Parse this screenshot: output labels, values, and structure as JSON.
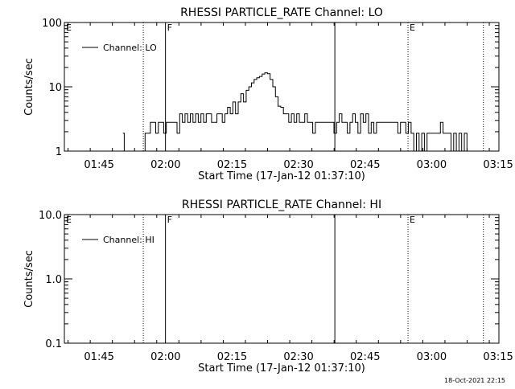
{
  "footer_text": "18-Oct-2021 22:15",
  "chart_data": [
    {
      "type": "line",
      "title": "RHESSI PARTICLE_RATE Channel: LO",
      "xlabel": "Start Time (17-Jan-12 01:37:10)",
      "ylabel": "Counts/sec",
      "yscale": "log",
      "ylim": [
        1,
        100
      ],
      "ytick_values": [
        1,
        10,
        100
      ],
      "ytick_labels": [
        "1",
        "10",
        "100"
      ],
      "xlim_minutes": [
        0,
        98
      ],
      "xtick_labels": [
        "01:45",
        "02:00",
        "02:15",
        "02:30",
        "02:45",
        "03:00",
        "03:15"
      ],
      "xtick_minutes": [
        7.83,
        22.83,
        37.83,
        52.83,
        67.83,
        82.83,
        97.83
      ],
      "legend": {
        "label": "Channel: LO",
        "placement": "top-left"
      },
      "markers": [
        {
          "label": "E",
          "minute": 0,
          "style": "none"
        },
        {
          "label": "",
          "minute": 17.8,
          "style": "dotted"
        },
        {
          "label": "F",
          "minute": 22.8,
          "style": "solid"
        },
        {
          "label": "",
          "minute": 61.0,
          "style": "solid"
        },
        {
          "label": "E",
          "minute": 77.5,
          "style": "dotted"
        },
        {
          "label": "",
          "minute": 94.5,
          "style": "dotted"
        }
      ],
      "series": [
        {
          "name": "Channel: LO",
          "points": [
            [
              13.2,
              1.9
            ],
            [
              13.5,
              1.0
            ],
            null,
            [
              17.8,
              1.0
            ],
            [
              18.2,
              1.9
            ],
            [
              18.8,
              1.9
            ],
            [
              19.4,
              2.8
            ],
            [
              20.0,
              2.8
            ],
            [
              20.6,
              1.9
            ],
            [
              21.2,
              2.8
            ],
            [
              21.8,
              2.8
            ],
            [
              22.4,
              1.9
            ],
            [
              23.0,
              2.8
            ],
            [
              23.6,
              2.8
            ],
            [
              24.2,
              2.8
            ],
            [
              24.8,
              2.8
            ],
            [
              25.4,
              1.9
            ],
            [
              26.0,
              3.8
            ],
            [
              26.6,
              2.8
            ],
            [
              27.2,
              3.8
            ],
            [
              27.8,
              2.8
            ],
            [
              28.4,
              3.8
            ],
            [
              29.0,
              2.8
            ],
            [
              29.6,
              3.8
            ],
            [
              30.2,
              2.8
            ],
            [
              30.8,
              3.8
            ],
            [
              31.4,
              2.8
            ],
            [
              32.0,
              3.8
            ],
            [
              32.6,
              3.8
            ],
            [
              33.2,
              2.8
            ],
            [
              33.8,
              2.8
            ],
            [
              34.4,
              3.8
            ],
            [
              35.0,
              3.8
            ],
            [
              35.6,
              2.8
            ],
            [
              36.2,
              3.8
            ],
            [
              36.8,
              4.8
            ],
            [
              37.4,
              3.8
            ],
            [
              38.0,
              5.8
            ],
            [
              38.6,
              3.8
            ],
            [
              39.2,
              5.8
            ],
            [
              39.8,
              7.8
            ],
            [
              40.4,
              5.8
            ],
            [
              41.0,
              8.8
            ],
            [
              41.6,
              10.0
            ],
            [
              42.2,
              11.5
            ],
            [
              42.8,
              13.0
            ],
            [
              43.4,
              13.8
            ],
            [
              44.0,
              14.5
            ],
            [
              44.6,
              15.8
            ],
            [
              45.2,
              16.5
            ],
            [
              45.8,
              16.0
            ],
            [
              46.4,
              13.0
            ],
            [
              47.0,
              10.0
            ],
            [
              47.6,
              7.0
            ],
            [
              48.2,
              5.0
            ],
            [
              48.8,
              4.8
            ],
            [
              49.4,
              3.8
            ],
            [
              50.0,
              3.8
            ],
            [
              50.6,
              2.8
            ],
            [
              51.2,
              3.8
            ],
            [
              51.8,
              2.8
            ],
            [
              52.4,
              3.8
            ],
            [
              53.0,
              2.8
            ],
            [
              53.6,
              2.8
            ],
            [
              54.2,
              3.8
            ],
            [
              54.8,
              2.8
            ],
            [
              55.4,
              2.8
            ],
            [
              56.0,
              1.9
            ],
            [
              56.6,
              2.8
            ],
            [
              57.2,
              2.8
            ],
            [
              57.8,
              2.8
            ],
            [
              58.4,
              2.8
            ],
            [
              59.0,
              2.8
            ],
            [
              59.6,
              2.8
            ],
            [
              60.2,
              2.8
            ],
            [
              60.8,
              1.9
            ],
            [
              61.4,
              2.8
            ],
            [
              62.0,
              3.8
            ],
            [
              62.6,
              2.8
            ],
            [
              63.2,
              2.8
            ],
            [
              63.8,
              1.9
            ],
            [
              64.4,
              2.8
            ],
            [
              65.0,
              3.8
            ],
            [
              65.6,
              2.8
            ],
            [
              66.2,
              1.9
            ],
            [
              66.8,
              3.8
            ],
            [
              67.4,
              2.8
            ],
            [
              68.0,
              3.8
            ],
            [
              68.6,
              1.9
            ],
            [
              69.2,
              2.8
            ],
            [
              69.8,
              1.9
            ],
            [
              70.4,
              2.8
            ],
            [
              71.0,
              2.8
            ],
            [
              71.6,
              2.8
            ],
            [
              72.2,
              2.8
            ],
            [
              72.8,
              2.8
            ],
            [
              73.4,
              2.8
            ],
            [
              74.0,
              2.8
            ],
            [
              74.6,
              2.8
            ],
            [
              75.2,
              1.9
            ],
            [
              75.8,
              2.8
            ],
            [
              76.4,
              2.8
            ],
            [
              77.0,
              1.9
            ],
            [
              77.6,
              2.8
            ],
            [
              78.2,
              1.9
            ],
            [
              78.8,
              1.0
            ],
            [
              79.4,
              1.9
            ],
            [
              80.0,
              1.0
            ],
            [
              80.6,
              1.9
            ],
            [
              81.2,
              1.0
            ],
            [
              81.8,
              1.9
            ],
            [
              82.4,
              1.9
            ],
            [
              83.0,
              1.9
            ],
            [
              83.6,
              1.9
            ],
            [
              84.2,
              1.9
            ],
            [
              84.8,
              2.8
            ],
            [
              85.4,
              1.9
            ],
            [
              86.0,
              1.9
            ],
            [
              86.6,
              1.9
            ],
            [
              87.2,
              1.0
            ],
            [
              87.8,
              1.9
            ],
            [
              88.4,
              1.0
            ],
            [
              89.0,
              1.9
            ],
            [
              89.6,
              1.0
            ],
            [
              90.2,
              1.9
            ],
            [
              90.8,
              1.0
            ]
          ]
        }
      ]
    },
    {
      "type": "line",
      "title": "RHESSI PARTICLE_RATE Channel: HI",
      "xlabel": "Start Time (17-Jan-12 01:37:10)",
      "ylabel": "Counts/sec",
      "yscale": "log",
      "ylim": [
        0.1,
        10
      ],
      "ytick_values": [
        0.1,
        1,
        10
      ],
      "ytick_labels": [
        "0.1",
        "1.0",
        "10.0"
      ],
      "xlim_minutes": [
        0,
        98
      ],
      "xtick_labels": [
        "01:45",
        "02:00",
        "02:15",
        "02:30",
        "02:45",
        "03:00",
        "03:15"
      ],
      "xtick_minutes": [
        7.83,
        22.83,
        37.83,
        52.83,
        67.83,
        82.83,
        97.83
      ],
      "legend": {
        "label": "Channel: HI",
        "placement": "top-left"
      },
      "markers": [
        {
          "label": "E",
          "minute": 0,
          "style": "none"
        },
        {
          "label": "",
          "minute": 17.8,
          "style": "dotted"
        },
        {
          "label": "F",
          "minute": 22.8,
          "style": "solid"
        },
        {
          "label": "",
          "minute": 61.0,
          "style": "solid"
        },
        {
          "label": "E",
          "minute": 77.5,
          "style": "dotted"
        },
        {
          "label": "",
          "minute": 94.5,
          "style": "dotted"
        }
      ],
      "series": [
        {
          "name": "Channel: HI",
          "points": []
        }
      ]
    }
  ]
}
